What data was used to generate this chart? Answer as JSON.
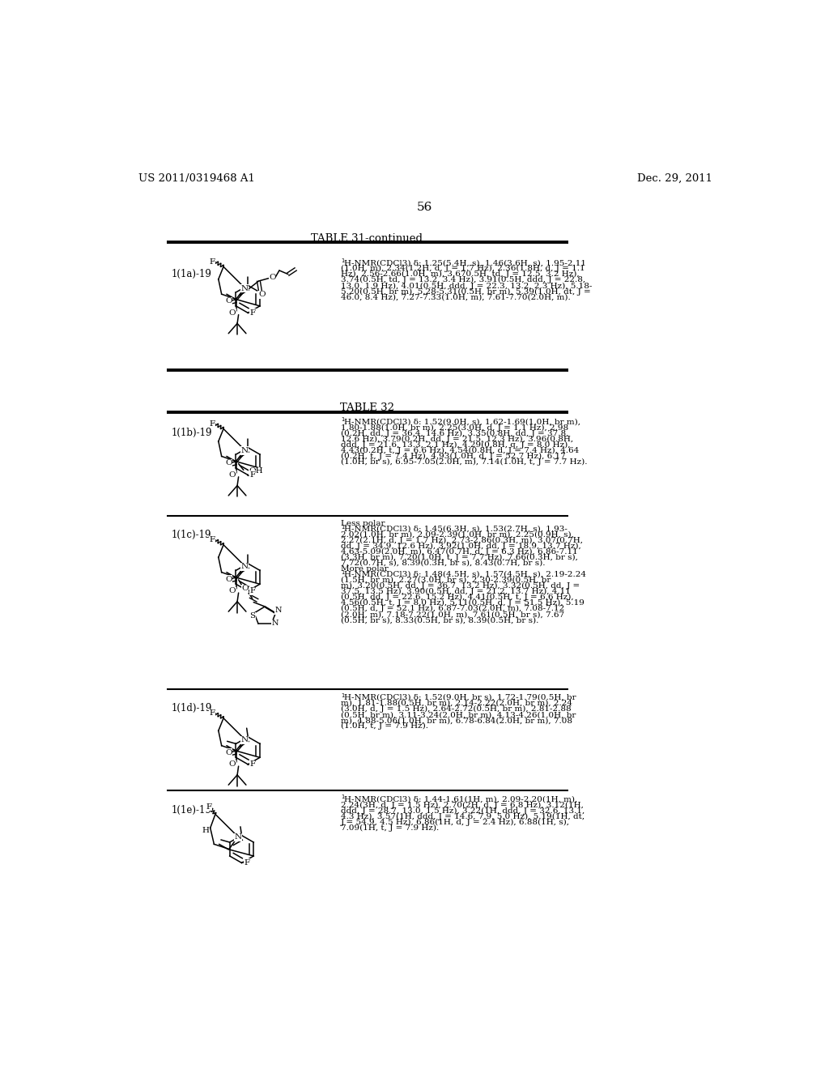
{
  "bg_color": "#ffffff",
  "header_left": "US 2011/0319468 A1",
  "header_right": "Dec. 29, 2011",
  "page_number": "56",
  "table31_title": "TABLE 31-continued",
  "table32_title": "TABLE 32",
  "row1_label": "1(1a)-19",
  "row1_nmr": "1H-NMR(CDCl3) δ: 1.25(5.4H, s), 1.46(3.6H, s), 1.95-2.11\n(1.0H, m), 2.34(1.2H, d, J = 1.7 Hz), 2.36(1.8H, d, J = 1.1\nHz), 2.56-2.66(1.0H, m), 3.670.5H, td, J = 12.5, 3.2 Hz),\n3.74(0.5H, td, J = 13.2, 3.4 Hz), 3.91(0.5H, ddd, J = 22.8,\n13.0, 1.9 Hz), 4.01(0.5H, ddd, J = 22.3, 13.2, 2.3 Hz), 5.18-\n5.20(0.5H, br m), 5.28-5.31(0.5H, br m), 5.39(1.0H, dt, J =\n46.0, 8.4 Hz), 7.27-7.33(1.0H, m), 7.61-7.70(2.0H, m).",
  "row2_label": "1(1b)-19",
  "row2_nmr": "1H-NMR(CDCl3) δ: 1.52(9.0H, s), 1.62-1.69(1.0H, br m),\n1.80-1.88(1.0H, br m), 2.25(3.0H, d, J = 1.1 Hz), 2.98\n(0.2H, dd, J = 36.4, 14.6 Hz), 3.35(0.8H, dd, J = 37.8,\n12.6 Hz), 3.79(0.2H, dd, J = 21.5, 12.3 Hz), 3.96(0.8H,\nddd, J = 21.6, 13.3, 2.1 Hz), 4.29(0.8H, q, J = 8.0 Hz),\n4.43(0.2H, t, J = 6.6 Hz), 4.54(0.8H, d, J = 7.4 Hz), 4.64\n(0.2H, t, J = 7.4 Hz), 4.93(1.0H, d, J = 52.7 Hz), 6.17\n(1.0H, br s), 6.95-7.05(2.0H, m), 7.14(1.0H, t, J = 7.7 Hz).",
  "row3_label": "1(1c)-19",
  "row3_nmr": "Less polar\n1H-NMR(CDCl3) δ: 1.45(6.3H, s), 1.53(2.7H, s), 1.93-\n2.02(1.0H, br m), 2.09-2.39(1.0H, br m), 2.25(0.9H, s),\n2.27(2.1H, d, J = 1.7 Hz), 2.73-2.86(0.3H, m), 3.07(0.7H,\ndd, J = 34.9, 12.6 Hz), 3.92(1.0H, dd, J = 18.9, 13.7 Hz),\n4.63-5.09(2.0H, m), 6.47(0.7H, d, J = 6.3 Hz), 6.86-7.11\n(3.3H, br m), 7.20(1.0H, t, J = 7.7 Hz), 7.66(0.3H, br s),\n7.72(0.7H, s), 8.39(0.3H, br s), 8.43(0.7H, br s).\nMore polar\n1H-NMR(CDCl3) δ: 1.48(4.5H, s), 1.57(4.5H, s), 2.19-2.24\n(1.5H, br m), 2.27(3.0H, br s), 2.30-2.39(0.5H, br\nm), 3.20(0.5H, dd, J = 36.7, 13.2 Hz), 3.32(0.5H, dd, J =\n37.5, 13.5 Hz), 3.90(0.5H, dd, J = 21.2, 13.7 Hz), 4.11\n(0.5H, dd, J = 22.6, 15.2 Hz), 4.41(0.5H, t, J = 6.6 Hz),\n4.56(0.5H, t, J = 8.0 Hz), 5.11(0.5H, d, J = 51.5 Hz), 5.19\n(0.5H, d, J = 52.1 Hz), 6.87-7.03(2.0H, m), 7.08-7.12\n(2.0H, m), 7.18-7.22(1.0H, m), 7.61(0.5H, br s), 7.67\n(0.5H, br s), 8.33(0.5H, br s), 8.39(0.5H, br s).",
  "row4_label": "1(1d)-19",
  "row4_nmr": "1H-NMR(CDCl3) δ: 1.52(9.0H, br s), 1.72-1.79(0.5H, br\nm), 1.81-1.88(0.5H, br m), 2.14-2.22(2.0H, br m), 2.24\n(3.0H, d, J = 1.5 Hz), 2.64-2.72(0.5H, br m), 2.81-2.88\n(0.5H, br m), 3.11-3.24(2.0H, br m), 4.13-4.26(1.0H, br\nm), 4.88-5.06(1.0H, br m), 6.78-6.84(2.0H, br m), 7.08\n(1.0H, t, J = 7.9 Hz).",
  "row5_label": "1(1e)-19",
  "row5_nmr": "1H-NMR(CDCl3) δ: 1.44-1.61(1H, m), 2.09-2.20(1H, m),\n2.24(3H, d, J = 1.5 Hz), 2.70(2H, d, J = 6.8 Hz), 3.12(1H,\nddd, J = 28.7, 13.0, 1.5 Hz), 3.22(1H, ddd, J = 32.6, 13.1,\n4.3 Hz), 3.57(1H, ddd, J = 14.6, 7.9, 5.0 Hz), 5.19(1H, dt,\nJ = 54.9, 4.5 Hz), 6.86(1H, d, J = 2.4 Hz), 6.88(1H, s),\n7.09(1H, t, J = 7.9 Hz)."
}
